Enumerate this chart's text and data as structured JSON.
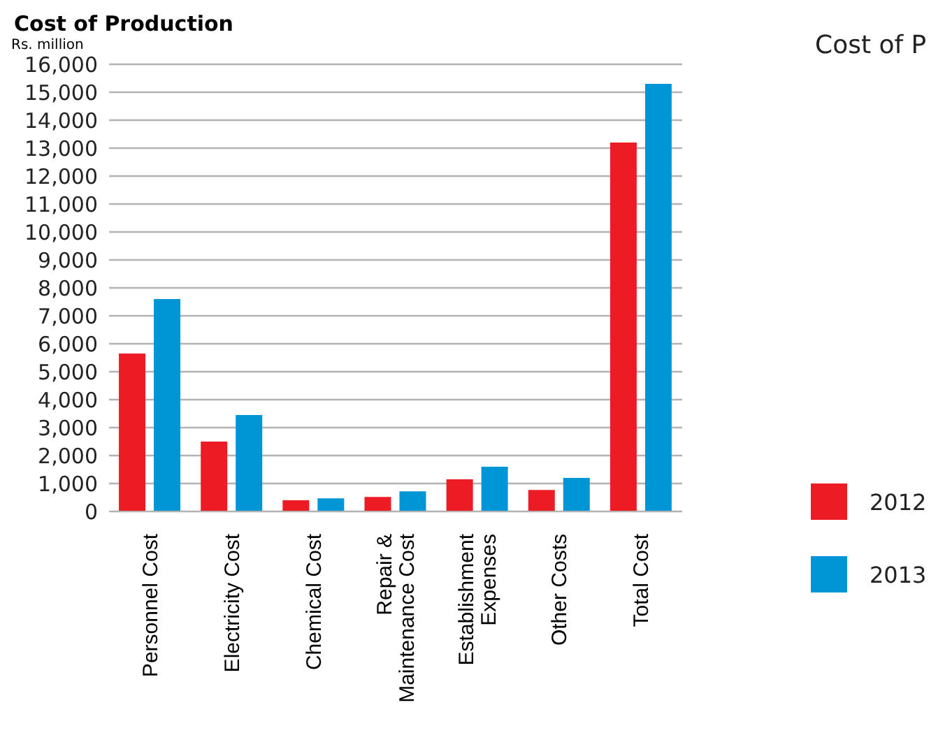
{
  "chart_data": {
    "type": "bar",
    "title": "Cost of Production",
    "ylabel": "Rs. million",
    "annotations": [
      "Cost of P"
    ],
    "categories": [
      "Personnel Cost",
      "Electricity Cost",
      "Chemical Cost",
      "Repair & Maintenance Cost",
      "Establishment Expenses",
      "Other Costs",
      "Total Cost"
    ],
    "series": [
      {
        "name": "2012",
        "color": "#ed1c24",
        "values": [
          5650,
          2500,
          400,
          520,
          1150,
          770,
          13200
        ]
      },
      {
        "name": "2013",
        "color": "#0096d6",
        "values": [
          7600,
          3450,
          470,
          720,
          1600,
          1200,
          15300
        ]
      }
    ],
    "ylim": [
      0,
      16000
    ],
    "yticks": [
      0,
      {
        "value": 1000,
        "label": "1,000"
      },
      {
        "value": 2000,
        "label": "2,000"
      },
      {
        "value": 3000,
        "label": "3,000"
      },
      {
        "value": 4000,
        "label": "4,000"
      },
      {
        "value": 5000,
        "label": "5,000"
      },
      {
        "value": 6000,
        "label": "6,000"
      },
      {
        "value": 7000,
        "label": "7,000"
      },
      {
        "value": 8000,
        "label": "8,000"
      },
      {
        "value": 9000,
        "label": "9,000"
      },
      {
        "value": 10000,
        "label": "10,000"
      },
      {
        "value": 11000,
        "label": "11,000"
      },
      {
        "value": 12000,
        "label": "12,000"
      },
      {
        "value": 13000,
        "label": "13,000"
      },
      {
        "value": 14000,
        "label": "14,000"
      },
      {
        "value": 15000,
        "label": "15,000"
      },
      {
        "value": 16000,
        "label": "16,000"
      }
    ],
    "grid": "y",
    "legend": "right"
  }
}
